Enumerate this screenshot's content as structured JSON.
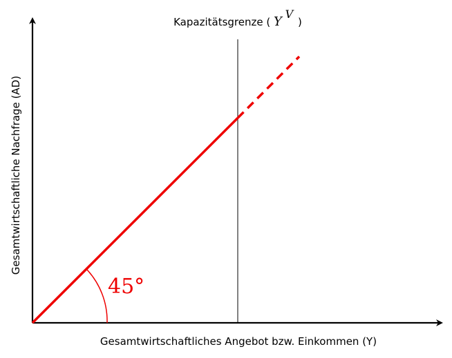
{
  "diagram": {
    "x_axis_label": "Gesamtwirtschaftliches Angebot bzw. Einkommen (Y)",
    "y_axis_label": "Gesamtwirtschaftliche Nachfrage (AD)",
    "capacity_label": {
      "prefix": "Kapazitätsgrenze (",
      "symbol": "Y",
      "superscript": "V",
      "suffix": ")"
    },
    "angle_label": "45°",
    "colors": {
      "line": "#ee0000",
      "axes": "#000000",
      "capacity": "#000000"
    },
    "line_style_beyond_capacity": "dashed"
  }
}
